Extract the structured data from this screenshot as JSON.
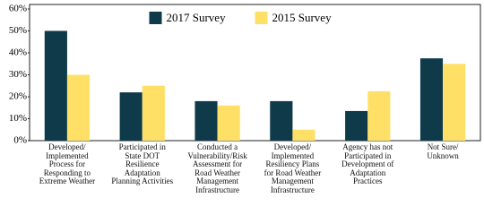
{
  "chart_data": {
    "type": "bar",
    "categories": [
      "Developed/\nImplemented\nProcess for\nResponding to\nExtreme Weather",
      "Participated in\nState DOT\nResilience\nAdaptation\nPlanning Activities",
      "Conducted a\nVulnerability/Risk\nAssessment for\nRoad Weather\nManagement\nInfrastructure",
      "Developed/\nImplemented\nResiliency Plans\nfor Road Weather\nManagement\nInfrastructure",
      "Agency has not\nParticipated in\nDevelopment of\nAdaptation\nPractices",
      "Not Sure/\nUnknown"
    ],
    "series": [
      {
        "name": "2017 Survey",
        "color": "#0e3a4a",
        "values": [
          50,
          22,
          18,
          18,
          13.5,
          37.5
        ]
      },
      {
        "name": "2015 Survey",
        "color": "#ffe066",
        "values": [
          30,
          25,
          16,
          5,
          22.5,
          35
        ]
      }
    ],
    "ylim": [
      0,
      60
    ],
    "yticks": [
      {
        "value": 0,
        "label": "0%"
      },
      {
        "value": 10,
        "label": "10%"
      },
      {
        "value": 20,
        "label": "20%"
      },
      {
        "value": 30,
        "label": "30%"
      },
      {
        "value": 40,
        "label": "40%"
      },
      {
        "value": 50,
        "label": "50%"
      },
      {
        "value": 60,
        "label": "60%"
      }
    ],
    "legend": "top-center"
  }
}
